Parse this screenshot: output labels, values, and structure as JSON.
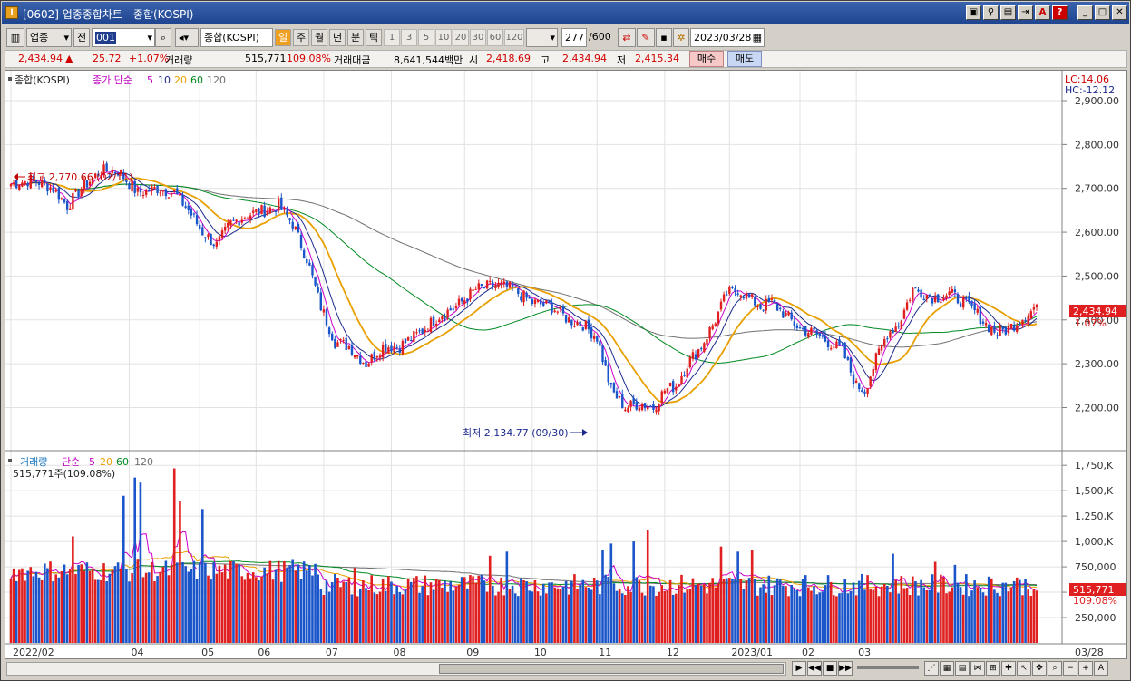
{
  "window": {
    "title": "[0602] 업종종합차트 - 종합(KOSPI)",
    "app_icon": "I",
    "controls": [
      "restore-icon",
      "link-icon",
      "print-icon",
      "save-icon",
      "alert-icon",
      "help-icon",
      "minimize-icon",
      "maximize-icon",
      "close-icon"
    ]
  },
  "toolbar": {
    "market_select": "업종",
    "prev_label": "전",
    "code_value": "001",
    "name_value": "종합(KOSPI)",
    "periods": [
      "일",
      "주",
      "월",
      "년",
      "분",
      "틱"
    ],
    "active_period": "일",
    "intervals": [
      "1",
      "3",
      "5",
      "10",
      "20",
      "30",
      "60",
      "120"
    ],
    "count_value": "277",
    "count_max": "/600",
    "date_value": "2023/03/28"
  },
  "quote": {
    "price": "2,434.94",
    "change": "25.72",
    "change_pct": "+1.07%",
    "volume_label": "거래량",
    "volume": "515,771",
    "volume_pct": "109.08%",
    "amount_label": "거래대금",
    "amount": "8,641,544백만",
    "open_label": "시",
    "open": "2,418.69",
    "high_label": "고",
    "high": "2,434.94",
    "low_label": "저",
    "low": "2,415.34",
    "buy_label": "매수",
    "sell_label": "매도"
  },
  "price_panel": {
    "legend_name": "종합(KOSPI)",
    "legend_ma": "종가 단순",
    "ma_periods": [
      "5",
      "10",
      "20",
      "60",
      "120"
    ],
    "lc": "LC:14.06",
    "hc": "HC:-12.12",
    "high_note": "최고 2,770.66 (02/11)",
    "low_note": "최저 2,134.77 (09/30)",
    "current_tag": "2,434.94",
    "current_pct": "1.07%"
  },
  "volume_panel": {
    "legend_name": "거래량",
    "legend_ma": "단순",
    "ma_periods": [
      "5",
      "20",
      "60",
      "120"
    ],
    "value_text": "515,771주(109.08%)",
    "current_tag": "515,771",
    "current_pct": "109.08%"
  },
  "chart_data": [
    {
      "type": "candlestick",
      "title": "종합(KOSPI)",
      "ylim": [
        2110,
        2960
      ],
      "y_ticks": [
        "2,900.00",
        "2,800.00",
        "2,700.00",
        "2,600.00",
        "2,500.00",
        "2,400.00",
        "2,300.00",
        "2,200.00"
      ],
      "month_ticks": [
        "2022/02",
        "04",
        "05",
        "06",
        "07",
        "08",
        "09",
        "10",
        "11",
        "12",
        "2023/01",
        "02",
        "03",
        "03/28"
      ],
      "close_keypoints": [
        [
          0,
          2710
        ],
        [
          8,
          2720
        ],
        [
          15,
          2700
        ],
        [
          20,
          2660
        ],
        [
          25,
          2700
        ],
        [
          32,
          2740
        ],
        [
          38,
          2740
        ],
        [
          45,
          2690
        ],
        [
          52,
          2700
        ],
        [
          58,
          2690
        ],
        [
          63,
          2650
        ],
        [
          68,
          2600
        ],
        [
          73,
          2570
        ],
        [
          78,
          2620
        ],
        [
          84,
          2640
        ],
        [
          90,
          2650
        ],
        [
          95,
          2660
        ],
        [
          100,
          2620
        ],
        [
          105,
          2540
        ],
        [
          110,
          2430
        ],
        [
          115,
          2350
        ],
        [
          120,
          2340
        ],
        [
          126,
          2300
        ],
        [
          132,
          2340
        ],
        [
          138,
          2340
        ],
        [
          145,
          2370
        ],
        [
          152,
          2410
        ],
        [
          158,
          2430
        ],
        [
          165,
          2470
        ],
        [
          172,
          2480
        ],
        [
          178,
          2470
        ],
        [
          185,
          2440
        ],
        [
          192,
          2430
        ],
        [
          198,
          2400
        ],
        [
          203,
          2390
        ],
        [
          208,
          2360
        ],
        [
          213,
          2240
        ],
        [
          218,
          2200
        ],
        [
          223,
          2210
        ],
        [
          228,
          2200
        ],
        [
          232,
          2240
        ],
        [
          236,
          2250
        ],
        [
          240,
          2300
        ],
        [
          245,
          2340
        ],
        [
          250,
          2400
        ],
        [
          254,
          2460
        ],
        [
          258,
          2470
        ],
        [
          262,
          2450
        ],
        [
          266,
          2430
        ],
        [
          270,
          2440
        ],
        [
          275,
          2410
        ],
        [
          280,
          2380
        ],
        [
          285,
          2370
        ],
        [
          290,
          2350
        ],
        [
          295,
          2330
        ],
        [
          300,
          2250
        ],
        [
          303,
          2240
        ],
        [
          307,
          2310
        ],
        [
          311,
          2370
        ],
        [
          315,
          2390
        ],
        [
          320,
          2470
        ],
        [
          324,
          2460
        ],
        [
          328,
          2450
        ],
        [
          333,
          2460
        ],
        [
          338,
          2440
        ],
        [
          342,
          2420
        ],
        [
          346,
          2390
        ],
        [
          350,
          2370
        ],
        [
          354,
          2380
        ],
        [
          358,
          2400
        ],
        [
          362,
          2420
        ],
        [
          364,
          2434.94
        ]
      ],
      "colors": {
        "up": "#e02020",
        "down": "#1a55c9",
        "ma5": "#cc00cc",
        "ma10": "#1c2a8c",
        "ma20": "#e8a000",
        "ma60": "#008a20",
        "ma120": "#707070"
      }
    },
    {
      "type": "bar",
      "title": "거래량",
      "ylim": [
        0,
        1850
      ],
      "y_ticks": [
        "1,750,K",
        "1,500,K",
        "1,250,K",
        "1,000,K",
        "750,000",
        "500,000",
        "250,000"
      ],
      "base_level_k": 560,
      "spikes_k": [
        [
          22,
          1050
        ],
        [
          40,
          1450
        ],
        [
          44,
          1630
        ],
        [
          46,
          1580
        ],
        [
          58,
          1720
        ],
        [
          60,
          1400
        ],
        [
          68,
          1320
        ],
        [
          108,
          780
        ],
        [
          122,
          740
        ],
        [
          170,
          860
        ],
        [
          176,
          900
        ],
        [
          210,
          920
        ],
        [
          213,
          980
        ],
        [
          221,
          1000
        ],
        [
          226,
          1110
        ],
        [
          252,
          950
        ],
        [
          258,
          900
        ],
        [
          263,
          920
        ],
        [
          313,
          880
        ],
        [
          328,
          800
        ],
        [
          335,
          770
        ],
        [
          358,
          620
        ],
        [
          364,
          515.771
        ]
      ]
    }
  ]
}
